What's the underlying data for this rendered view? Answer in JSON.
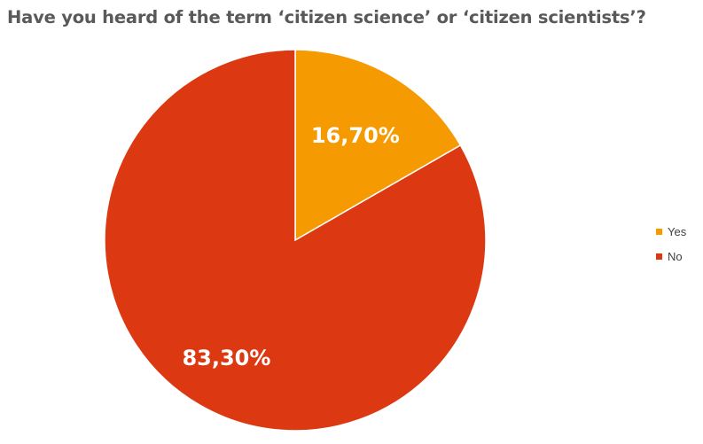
{
  "chart_data": {
    "type": "pie",
    "title": "Have you heard of the term ‘citizen science’ or ‘citizen scientists’?",
    "categories": [
      "Yes",
      "No"
    ],
    "values": [
      16.7,
      83.3
    ],
    "data_labels": [
      "16,70%",
      "83,30%"
    ],
    "colors": [
      "#F59A00",
      "#DC3912"
    ],
    "legend_position": "right"
  }
}
